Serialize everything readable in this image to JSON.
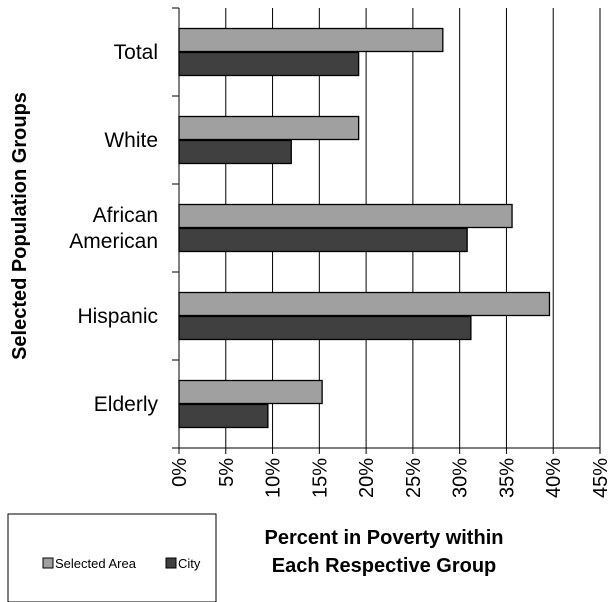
{
  "chart_data": {
    "type": "bar",
    "orientation": "horizontal",
    "categories": [
      [
        "Total"
      ],
      [
        "White"
      ],
      [
        "African",
        "American"
      ],
      [
        "Hispanic"
      ],
      [
        "Elderly"
      ]
    ],
    "series": [
      {
        "name": "Selected Area",
        "values": [
          28.2,
          19.2,
          35.6,
          39.6,
          15.3
        ],
        "color": "#a0a0a0"
      },
      {
        "name": "City",
        "values": [
          19.2,
          12.0,
          30.8,
          31.2,
          9.5
        ],
        "color": "#404040"
      }
    ],
    "xlim": [
      0,
      45
    ],
    "xticks": [
      "0%",
      "5%",
      "10%",
      "15%",
      "20%",
      "25%",
      "30%",
      "35%",
      "40%",
      "45%"
    ],
    "ylabel": "Selected Population Groups",
    "xlabel": [
      "Percent in Poverty within",
      "Each Respective Group"
    ],
    "grid": true,
    "legend": "bottom-left"
  }
}
